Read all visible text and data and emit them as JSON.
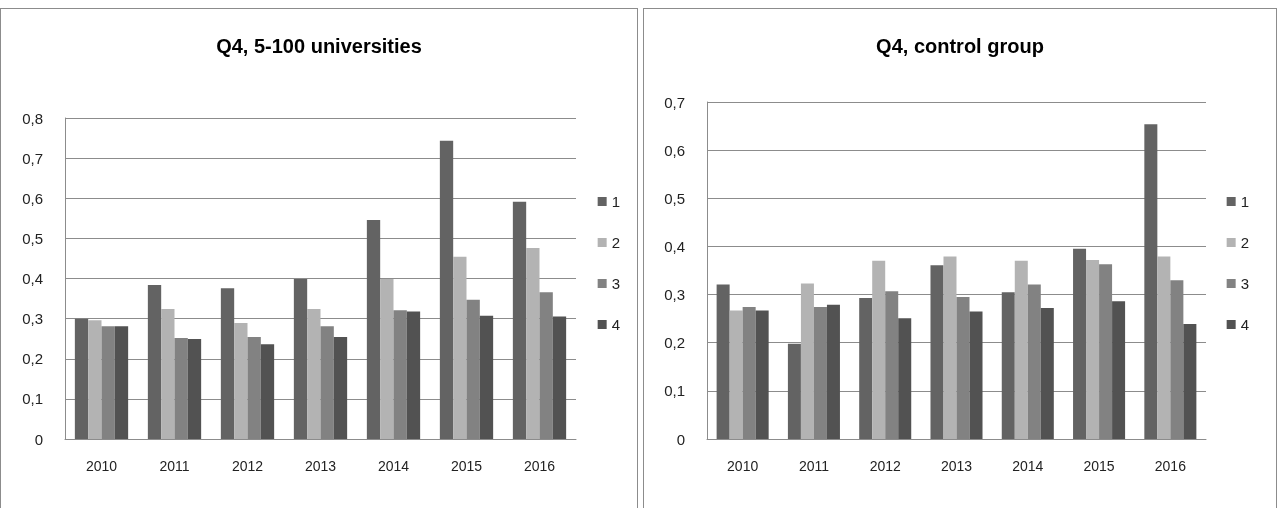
{
  "chart_data": [
    {
      "type": "bar",
      "title": "Q4, 5-100 universities",
      "categories": [
        "2010",
        "2011",
        "2012",
        "2013",
        "2014",
        "2015",
        "2016"
      ],
      "series": [
        {
          "name": "1",
          "color": "#636363",
          "values": [
            0.3,
            0.384,
            0.376,
            0.399,
            0.546,
            0.743,
            0.591
          ]
        },
        {
          "name": "2",
          "color": "#b3b3b3",
          "values": [
            0.296,
            0.324,
            0.289,
            0.324,
            0.399,
            0.454,
            0.476
          ]
        },
        {
          "name": "3",
          "color": "#828282",
          "values": [
            0.281,
            0.252,
            0.254,
            0.281,
            0.321,
            0.347,
            0.366
          ]
        },
        {
          "name": "4",
          "color": "#525252",
          "values": [
            0.281,
            0.249,
            0.236,
            0.254,
            0.318,
            0.307,
            0.305
          ]
        }
      ],
      "ylim": [
        0,
        0.8
      ],
      "yticks": [
        0,
        {
          "value": 0.1,
          "label": "0,1"
        },
        {
          "value": 0.2,
          "label": "0,2"
        },
        {
          "value": 0.3,
          "label": "0,3"
        },
        {
          "value": 0.4,
          "label": "0,4"
        },
        {
          "value": 0.5,
          "label": "0,5"
        },
        {
          "value": 0.6,
          "label": "0,6"
        },
        {
          "value": 0.7,
          "label": "0,7"
        },
        {
          "value": 0.8,
          "label": "0,8"
        }
      ],
      "grid": "y",
      "legend": "right"
    },
    {
      "type": "bar",
      "title": "Q4, control group",
      "categories": [
        "2010",
        "2011",
        "2012",
        "2013",
        "2014",
        "2015",
        "2016"
      ],
      "series": [
        {
          "name": "1",
          "color": "#636363",
          "values": [
            0.321,
            0.198,
            0.293,
            0.361,
            0.305,
            0.395,
            0.654
          ]
        },
        {
          "name": "2",
          "color": "#b3b3b3",
          "values": [
            0.267,
            0.323,
            0.37,
            0.379,
            0.37,
            0.372,
            0.379
          ]
        },
        {
          "name": "3",
          "color": "#828282",
          "values": [
            0.274,
            0.274,
            0.307,
            0.295,
            0.321,
            0.363,
            0.33
          ]
        },
        {
          "name": "4",
          "color": "#525252",
          "values": [
            0.267,
            0.279,
            0.251,
            0.265,
            0.272,
            0.286,
            0.239
          ]
        }
      ],
      "ylim": [
        0,
        0.7
      ],
      "yticks": [
        0,
        {
          "value": 0.1,
          "label": "0,1"
        },
        {
          "value": 0.2,
          "label": "0,2"
        },
        {
          "value": 0.3,
          "label": "0,3"
        },
        {
          "value": 0.4,
          "label": "0,4"
        },
        {
          "value": 0.5,
          "label": "0,5"
        },
        {
          "value": 0.6,
          "label": "0,6"
        },
        {
          "value": 0.7,
          "label": "0,7"
        }
      ],
      "grid": "y",
      "legend": "right"
    }
  ]
}
